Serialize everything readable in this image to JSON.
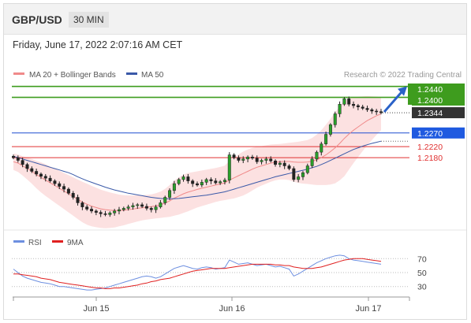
{
  "header": {
    "pair": "GBP/USD",
    "timeframe": "30 MIN",
    "datetime": "Friday, June 17, 2022 2:07:16 AM CET"
  },
  "legend": {
    "ma20": {
      "label": "MA 20 + Bollinger Bands",
      "color": "#f08a8a"
    },
    "ma50": {
      "label": "MA 50",
      "color": "#3a59a8"
    }
  },
  "copyright": "Research © 2022 Trading Central",
  "rsi_legend": {
    "rsi": {
      "label": "RSI",
      "color": "#6d8fe0"
    },
    "ma9": {
      "label": "9MA",
      "color": "#e02020"
    }
  },
  "chart_data": [
    {
      "type": "candlestick",
      "x_ticks": [
        "Jun 15",
        "Jun 16",
        "Jun 17"
      ],
      "ylim": [
        1.193,
        1.2465
      ],
      "current_price": "1.2344",
      "levels": [
        {
          "label": "1.2440",
          "value": 1.244,
          "kind": "resistance",
          "color": "#3e9c1e"
        },
        {
          "label": "1.2400",
          "value": 1.24,
          "kind": "resistance",
          "color": "#3e9c1e"
        },
        {
          "label": "1.2270",
          "value": 1.227,
          "kind": "pivot",
          "color": "#1f4fd1"
        },
        {
          "label": "1.2220",
          "value": 1.222,
          "kind": "support",
          "color": "#e03030"
        },
        {
          "label": "1.2180",
          "value": 1.218,
          "kind": "support",
          "color": "#e03030"
        }
      ],
      "close": [
        1.218,
        1.217,
        1.2155,
        1.214,
        1.213,
        1.212,
        1.2112,
        1.2105,
        1.2095,
        1.2085,
        1.2075,
        1.2065,
        1.205,
        1.2035,
        1.2015,
        1.2,
        1.1992,
        1.1985,
        1.198,
        1.1975,
        1.1972,
        1.1978,
        1.1985,
        1.199,
        1.1995,
        1.2,
        1.2005,
        1.2008,
        1.2002,
        1.1995,
        1.199,
        1.2,
        1.2015,
        1.2035,
        1.206,
        1.2085,
        1.21,
        1.211,
        1.2095,
        1.2085,
        1.208,
        1.209,
        1.21,
        1.2095,
        1.2088,
        1.2092,
        1.2098,
        1.219,
        1.218,
        1.217,
        1.2175,
        1.2182,
        1.2178,
        1.2165,
        1.217,
        1.2175,
        1.2168,
        1.2155,
        1.216,
        1.215,
        1.214,
        1.21,
        1.211,
        1.2125,
        1.215,
        1.2175,
        1.22,
        1.223,
        1.2265,
        1.23,
        1.234,
        1.2375,
        1.2395,
        1.2375,
        1.237,
        1.2365,
        1.236,
        1.2355,
        1.235,
        1.2348,
        1.2344
      ],
      "ma20": [
        1.2165,
        1.216,
        1.215,
        1.214,
        1.213,
        1.2118,
        1.2108,
        1.2098,
        1.2088,
        1.2078,
        1.2068,
        1.2058,
        1.2048,
        1.2038,
        1.2028,
        1.2018,
        1.201,
        1.2003,
        1.1998,
        1.1993,
        1.199,
        1.1988,
        1.1987,
        1.1987,
        1.1988,
        1.199,
        1.1992,
        1.1995,
        1.1997,
        1.1999,
        1.2001,
        1.2004,
        1.2008,
        1.2014,
        1.2022,
        1.2032,
        1.204,
        1.2048,
        1.2054,
        1.2059,
        1.2064,
        1.2068,
        1.2072,
        1.2076,
        1.208,
        1.2084,
        1.2088,
        1.2098,
        1.2106,
        1.2114,
        1.2122,
        1.213,
        1.2138,
        1.2145,
        1.215,
        1.2155,
        1.216,
        1.2163,
        1.2165,
        1.2166,
        1.2166,
        1.2164,
        1.2163,
        1.2163,
        1.2164,
        1.2167,
        1.2172,
        1.218,
        1.219,
        1.2202,
        1.2216,
        1.2232,
        1.225,
        1.2266,
        1.228,
        1.2292,
        1.2304,
        1.2315,
        1.2324,
        1.2333,
        1.234
      ],
      "ma50": [
        1.2185,
        1.218,
        1.2175,
        1.217,
        1.2165,
        1.216,
        1.2155,
        1.215,
        1.2145,
        1.214,
        1.2135,
        1.213,
        1.2125,
        1.2118,
        1.211,
        1.2103,
        1.2096,
        1.209,
        1.2084,
        1.2078,
        1.2072,
        1.2067,
        1.2062,
        1.2058,
        1.2054,
        1.205,
        1.2047,
        1.2044,
        1.2041,
        1.2038,
        1.2035,
        1.2033,
        1.2031,
        1.203,
        1.203,
        1.203,
        1.2031,
        1.2033,
        1.2035,
        1.2037,
        1.2039,
        1.2041,
        1.2043,
        1.2046,
        1.2049,
        1.2052,
        1.2055,
        1.206,
        1.2065,
        1.207,
        1.2075,
        1.208,
        1.2085,
        1.209,
        1.2095,
        1.21,
        1.2105,
        1.211,
        1.2114,
        1.2118,
        1.2122,
        1.2126,
        1.213,
        1.2134,
        1.2138,
        1.2143,
        1.2148,
        1.2155,
        1.2162,
        1.217,
        1.2178,
        1.2186,
        1.2194,
        1.2202,
        1.221,
        1.2216,
        1.2222,
        1.2227,
        1.2232,
        1.2236,
        1.224
      ],
      "bb_width": [
        0.003,
        0.0032,
        0.0035,
        0.004,
        0.0045,
        0.005,
        0.0055,
        0.0058,
        0.006,
        0.0062,
        0.0064,
        0.0066,
        0.0068,
        0.007,
        0.0072,
        0.0074,
        0.0075,
        0.0074,
        0.0072,
        0.007,
        0.0068,
        0.0065,
        0.0062,
        0.0058,
        0.0055,
        0.0052,
        0.005,
        0.0048,
        0.0046,
        0.0045,
        0.0045,
        0.0046,
        0.0048,
        0.0052,
        0.0058,
        0.0064,
        0.0068,
        0.007,
        0.007,
        0.0068,
        0.0066,
        0.0065,
        0.0064,
        0.0063,
        0.0062,
        0.0062,
        0.0063,
        0.007,
        0.0075,
        0.0078,
        0.008,
        0.008,
        0.0078,
        0.0075,
        0.0072,
        0.007,
        0.0068,
        0.0066,
        0.0065,
        0.0066,
        0.0068,
        0.0072,
        0.0075,
        0.0078,
        0.008,
        0.0085,
        0.0092,
        0.01,
        0.011,
        0.012,
        0.013,
        0.0135,
        0.0138,
        0.013,
        0.012,
        0.011,
        0.01,
        0.009,
        0.008,
        0.007,
        0.006
      ]
    },
    {
      "type": "line",
      "title": "RSI",
      "y_ticks": [
        "70",
        "50",
        "30"
      ],
      "ylim": [
        15,
        85
      ],
      "rsi": [
        55,
        50,
        45,
        42,
        40,
        38,
        36,
        35,
        34,
        32,
        30,
        30,
        29,
        28,
        27,
        26,
        25,
        25,
        26,
        27,
        28,
        30,
        32,
        34,
        36,
        38,
        40,
        42,
        44,
        45,
        44,
        42,
        44,
        48,
        52,
        56,
        58,
        60,
        58,
        56,
        55,
        57,
        58,
        57,
        55,
        56,
        57,
        68,
        65,
        62,
        63,
        64,
        62,
        60,
        61,
        62,
        60,
        58,
        59,
        57,
        55,
        45,
        48,
        52,
        56,
        60,
        64,
        67,
        70,
        72,
        74,
        75,
        74,
        70,
        68,
        67,
        66,
        65,
        64,
        63,
        62
      ],
      "ma9": [
        48,
        48,
        47,
        46,
        45,
        44,
        42,
        41,
        40,
        38,
        36,
        35,
        34,
        33,
        32,
        31,
        30,
        29,
        28,
        28,
        27,
        27,
        28,
        28,
        29,
        30,
        31,
        32,
        34,
        35,
        37,
        38,
        40,
        41,
        42,
        44,
        46,
        48,
        50,
        52,
        53,
        54,
        55,
        56,
        56,
        56,
        56,
        57,
        58,
        59,
        60,
        61,
        62,
        62,
        62,
        62,
        62,
        61,
        61,
        60,
        60,
        58,
        57,
        56,
        56,
        56,
        57,
        58,
        60,
        62,
        64,
        66,
        68,
        69,
        70,
        70,
        70,
        69,
        68,
        67,
        66
      ]
    }
  ]
}
